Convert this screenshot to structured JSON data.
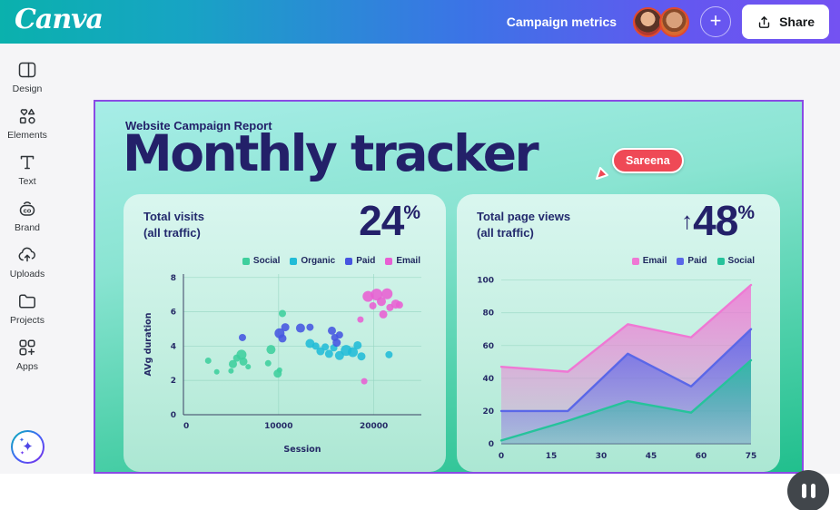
{
  "topbar": {
    "logo": "Canva",
    "doc_title": "Campaign metrics",
    "share_label": "Share"
  },
  "sidebar": {
    "items": [
      {
        "label": "Design"
      },
      {
        "label": "Elements"
      },
      {
        "label": "Text"
      },
      {
        "label": "Brand"
      },
      {
        "label": "Uploads"
      },
      {
        "label": "Projects"
      },
      {
        "label": "Apps"
      }
    ]
  },
  "canvas": {
    "eyebrow": "Website Campaign Report",
    "title": "Monthly tracker",
    "collaborator": {
      "name": "Sareena",
      "color": "#ef4956"
    },
    "cards": [
      {
        "title_line1": "Total visits",
        "title_line2": "(all traffic)",
        "arrow": "",
        "metric": "24",
        "suffix": "%"
      },
      {
        "title_line1": "Total page views",
        "title_line2": "(all traffic)",
        "arrow": "↑",
        "metric": "48",
        "suffix": "%"
      }
    ]
  },
  "chart_data": [
    {
      "type": "scatter",
      "title": "Total visits (all traffic)",
      "xlabel": "Session",
      "ylabel": "AVg duration",
      "xlim": [
        0,
        25000
      ],
      "ylim": [
        0,
        8.2
      ],
      "xticks": [
        0,
        10000,
        20000
      ],
      "yticks": [
        0,
        2,
        4,
        6,
        8
      ],
      "grid": true,
      "legend_position": "top-right",
      "series": [
        {
          "name": "Social",
          "color": "#3ecf9d",
          "points": [
            [
              2600,
              3.15,
              3.5
            ],
            [
              3500,
              2.5,
              3
            ],
            [
              5000,
              2.55,
              3
            ],
            [
              5200,
              2.95,
              4.5
            ],
            [
              5600,
              3.3,
              4
            ],
            [
              6100,
              3.5,
              5.5
            ],
            [
              6300,
              3.1,
              4.5
            ],
            [
              6800,
              2.8,
              3
            ],
            [
              8900,
              3.0,
              3.5
            ],
            [
              9200,
              3.8,
              5
            ],
            [
              9900,
              2.4,
              4.5
            ],
            [
              10100,
              2.6,
              3
            ],
            [
              10400,
              5.9,
              4
            ]
          ]
        },
        {
          "name": "Organic",
          "color": "#21bcd7",
          "points": [
            [
              13300,
              4.15,
              5
            ],
            [
              13900,
              4.0,
              4
            ],
            [
              14400,
              3.7,
              4.5
            ],
            [
              14900,
              3.95,
              4
            ],
            [
              15300,
              3.55,
              4.5
            ],
            [
              15800,
              3.9,
              4
            ],
            [
              16400,
              3.45,
              5
            ],
            [
              17100,
              3.75,
              6
            ],
            [
              17800,
              3.65,
              5.5
            ],
            [
              18300,
              4.05,
              4.5
            ],
            [
              18700,
              3.4,
              4.5
            ],
            [
              21600,
              3.5,
              4
            ]
          ]
        },
        {
          "name": "Paid",
          "color": "#4655e0",
          "points": [
            [
              6200,
              4.5,
              4
            ],
            [
              10100,
              4.75,
              5.5
            ],
            [
              10400,
              4.45,
              4.5
            ],
            [
              10700,
              5.1,
              4.5
            ],
            [
              12300,
              5.05,
              5
            ],
            [
              13300,
              5.1,
              4
            ],
            [
              15600,
              4.9,
              4.5
            ],
            [
              15900,
              4.5,
              4
            ],
            [
              16100,
              4.2,
              4.5
            ],
            [
              16400,
              4.65,
              4
            ]
          ]
        },
        {
          "name": "Email",
          "color": "#e85fd3",
          "points": [
            [
              18600,
              5.55,
              3.5
            ],
            [
              19000,
              1.95,
              3.5
            ],
            [
              19400,
              6.9,
              6
            ],
            [
              19900,
              6.35,
              4
            ],
            [
              20300,
              7.0,
              6.5
            ],
            [
              20800,
              6.6,
              5
            ],
            [
              21000,
              5.85,
              4.5
            ],
            [
              21400,
              7.05,
              6
            ],
            [
              21700,
              6.25,
              4
            ],
            [
              22300,
              6.45,
              5
            ],
            [
              22700,
              6.4,
              4
            ]
          ]
        }
      ]
    },
    {
      "type": "area",
      "title": "Total page views (all traffic)",
      "xlabel": "",
      "ylabel": "",
      "x": [
        0,
        20,
        38,
        57,
        75
      ],
      "xlim": [
        0,
        75
      ],
      "ylim": [
        0,
        102
      ],
      "xticks": [
        0,
        15,
        30,
        45,
        60,
        75
      ],
      "yticks": [
        0,
        20,
        40,
        60,
        80,
        100
      ],
      "grid": true,
      "legend_position": "top-right",
      "series": [
        {
          "name": "Email",
          "color": "#ef78d4",
          "values": [
            47,
            44,
            73,
            65,
            97
          ]
        },
        {
          "name": "Paid",
          "color": "#5a67e8",
          "values": [
            20,
            20,
            55,
            35,
            70
          ]
        },
        {
          "name": "Social",
          "color": "#26c39b",
          "values": [
            2,
            14,
            26,
            19,
            51
          ]
        }
      ]
    }
  ],
  "colors": {
    "navy": "#232069",
    "canvas_border": "#8a4be4",
    "grid_line": "#97d6c3",
    "axis_line": "#3a3f63",
    "tick_text": "#252a66"
  }
}
